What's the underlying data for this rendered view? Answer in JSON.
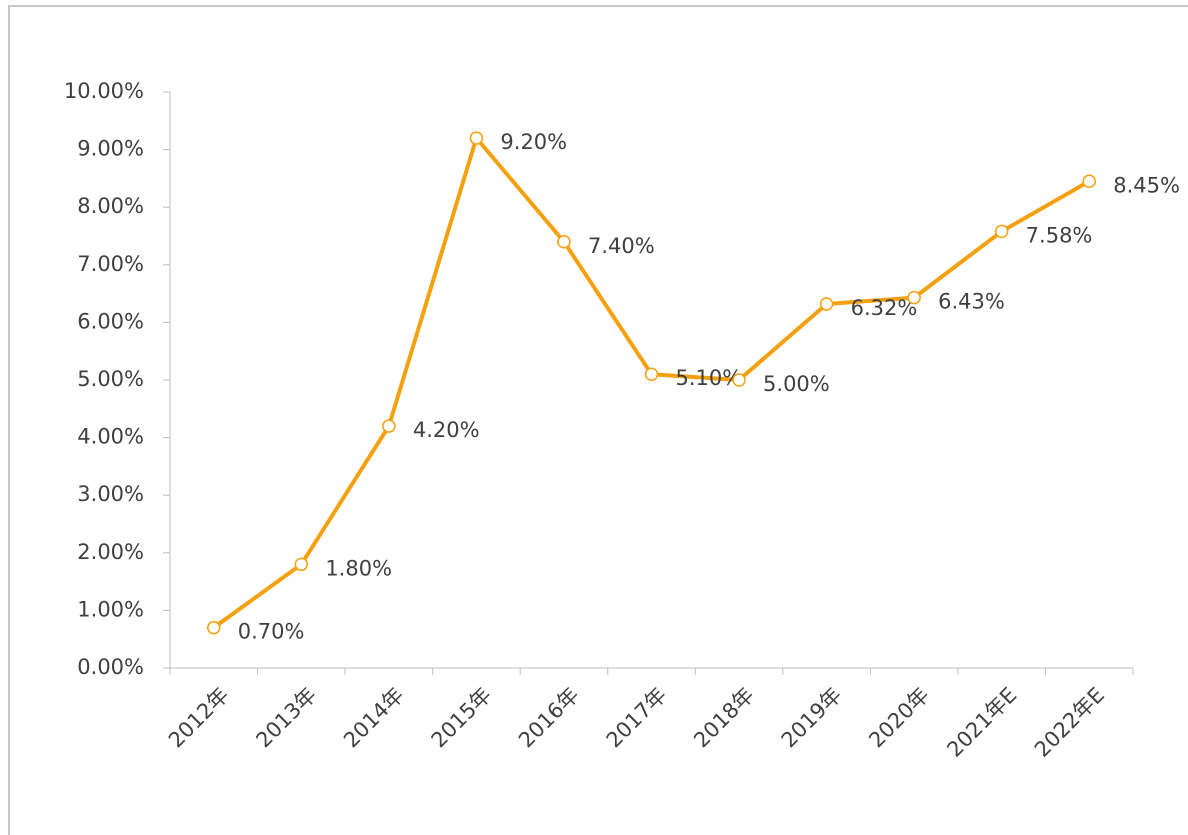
{
  "chart_data": {
    "type": "line",
    "categories": [
      "2012年",
      "2013年",
      "2014年",
      "2015年",
      "2016年",
      "2017年",
      "2018年",
      "2019年",
      "2020年",
      "2021年E",
      "2022年E"
    ],
    "series": [
      {
        "color": "#f5a00f",
        "values": [
          0.7,
          1.8,
          4.2,
          9.2,
          7.4,
          5.1,
          5.0,
          6.32,
          6.43,
          7.58,
          8.45
        ],
        "value_labels": [
          "0.70%",
          "1.80%",
          "4.20%",
          "9.20%",
          "7.40%",
          "5.10%",
          "5.00%",
          "6.32%",
          "6.43%",
          "7.58%",
          "8.45%"
        ]
      }
    ],
    "ylim": [
      0,
      10
    ],
    "yticks": [
      {
        "value": 0,
        "label": "0.00%"
      },
      {
        "value": 1,
        "label": "1.00%"
      },
      {
        "value": 2,
        "label": "2.00%"
      },
      {
        "value": 3,
        "label": "3.00%"
      },
      {
        "value": 4,
        "label": "4.00%"
      },
      {
        "value": 5,
        "label": "5.00%"
      },
      {
        "value": 6,
        "label": "6.00%"
      },
      {
        "value": 7,
        "label": "7.00%"
      },
      {
        "value": 8,
        "label": "8.00%"
      },
      {
        "value": 9,
        "label": "9.00%"
      },
      {
        "value": 10,
        "label": "10.00%"
      }
    ],
    "grid": false
  }
}
